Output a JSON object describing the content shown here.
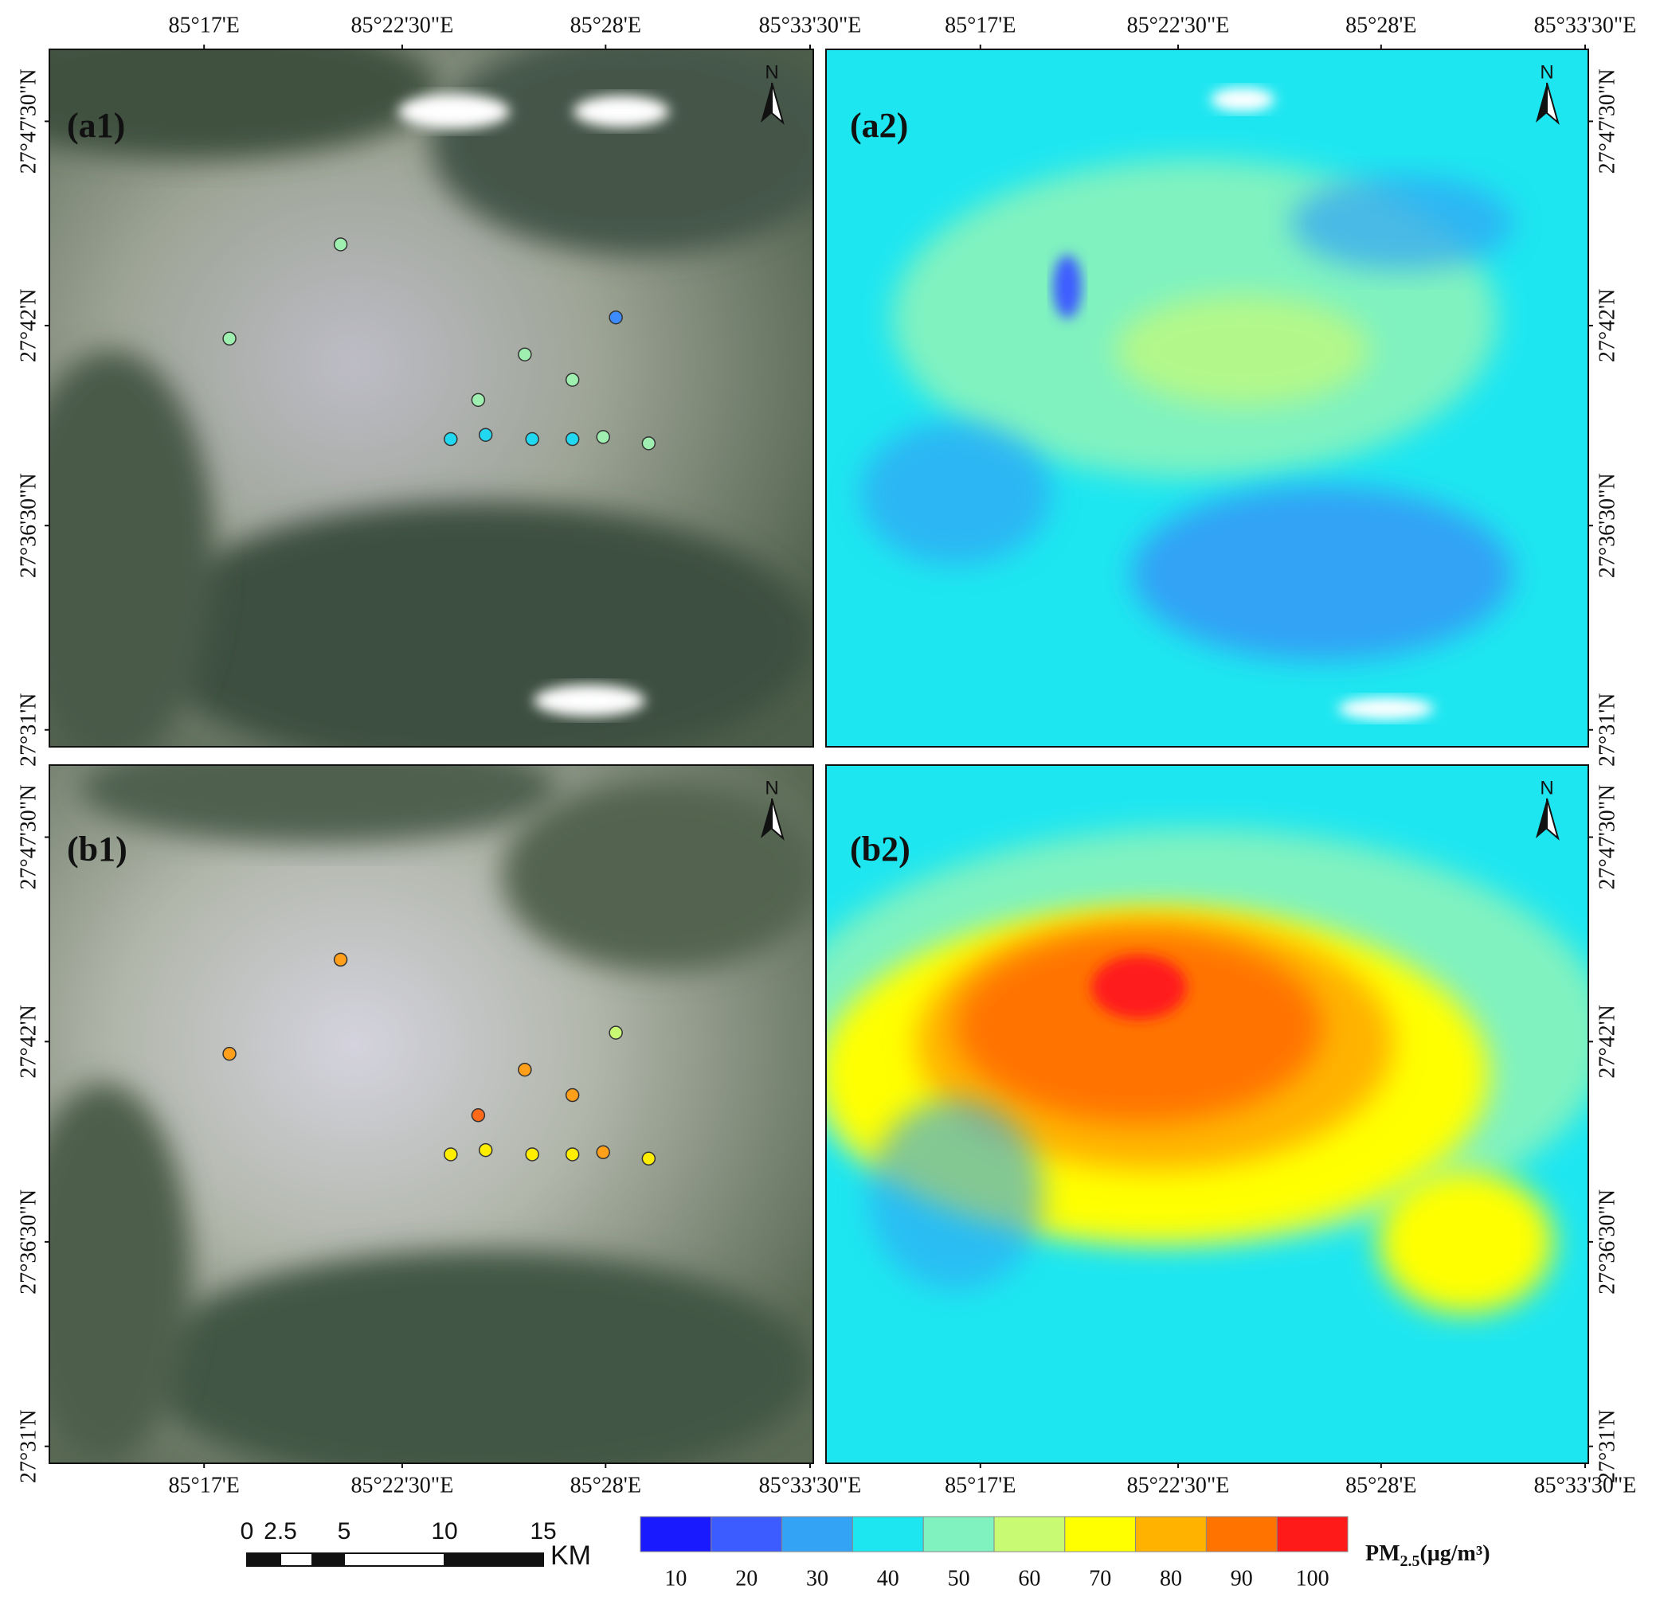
{
  "panels": [
    {
      "label": "(a1)"
    },
    {
      "label": "(a2)"
    },
    {
      "label": "(b1)"
    },
    {
      "label": "(b2)"
    }
  ],
  "x_axis_labels": [
    "85°17'E",
    "85°22'30\"E",
    "85°28'E",
    "85°33'30\"E"
  ],
  "y_axis_labels": [
    "27°47'30\"N",
    "27°42'N",
    "27°36'30\"N",
    "27°31'N"
  ],
  "north_label": "N",
  "scale_bar": {
    "ticks": [
      "0",
      "2.5",
      "5",
      "10",
      "15"
    ],
    "unit": "KM"
  },
  "legend": {
    "title_main": "PM",
    "title_sub": "2.5",
    "title_unit": "(μg/m³)",
    "colors": [
      "#1a1aff",
      "#3d5cff",
      "#33a3f5",
      "#1ee6f0",
      "#80f2c0",
      "#c8fa73",
      "#ffff00",
      "#ffb300",
      "#ff7300",
      "#ff1a1a"
    ],
    "labels": [
      "10",
      "20",
      "30",
      "40",
      "50",
      "60",
      "70",
      "80",
      "90",
      "100"
    ]
  }
}
